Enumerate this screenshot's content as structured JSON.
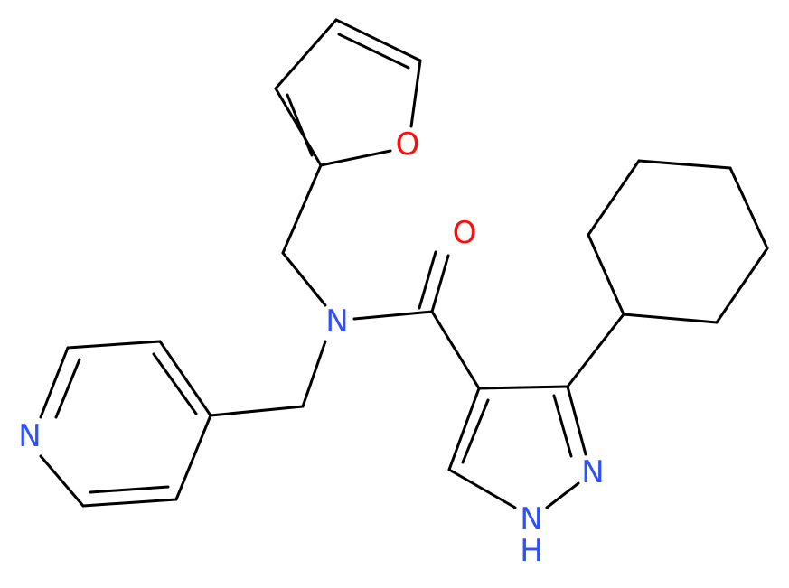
{
  "atoms": [
    {
      "label": "O"
    },
    {
      "label": "O"
    },
    {
      "label": "N"
    },
    {
      "label": "N"
    },
    {
      "label": "N"
    },
    {
      "label": "N"
    },
    {
      "label": "H"
    }
  ]
}
